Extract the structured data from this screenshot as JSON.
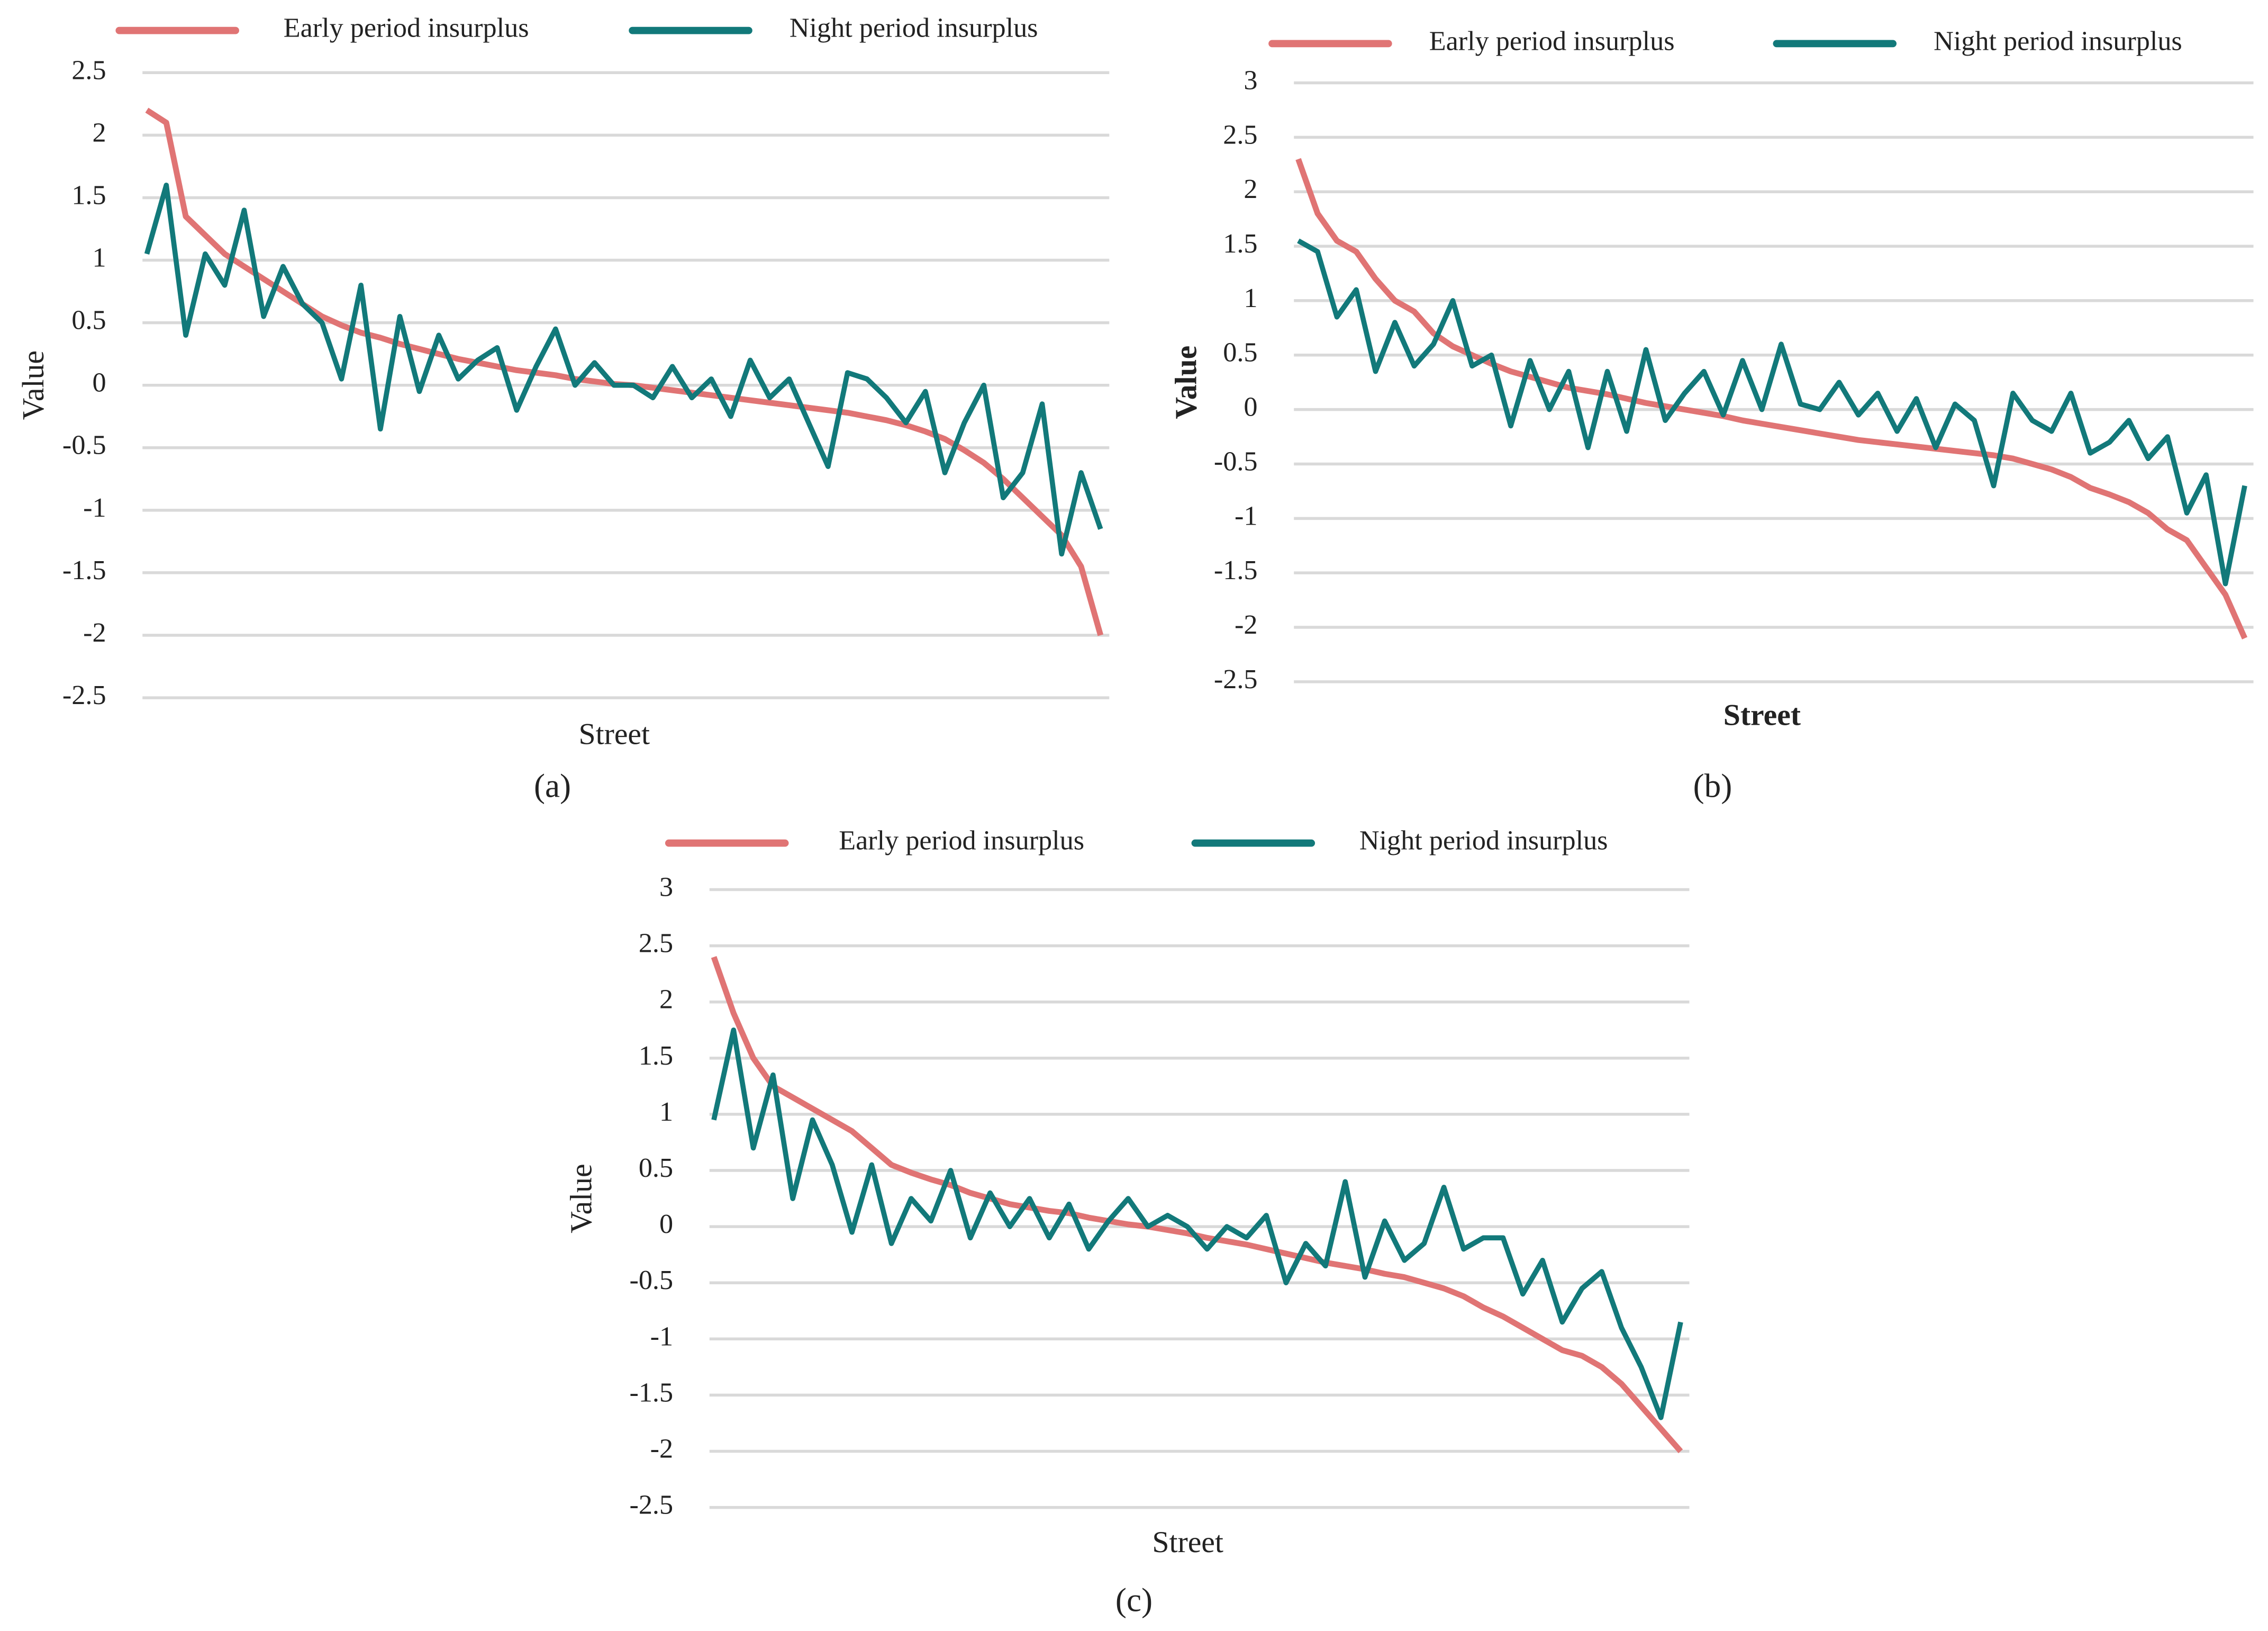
{
  "chart_data": [
    {
      "type": "line",
      "caption": "(a)",
      "x_label": "Street",
      "y_label": "Value",
      "grid": true,
      "legend": "top",
      "ylim": [
        -2.5,
        2.5
      ],
      "yticks": [
        -2.5,
        -2,
        -1.5,
        -1,
        -0.5,
        0,
        0.5,
        1,
        1.5,
        2,
        2.5
      ],
      "categories": [
        null,
        null,
        null,
        null,
        null,
        null,
        null,
        null,
        null,
        null,
        null,
        null,
        null,
        null,
        null,
        null,
        null,
        null,
        null,
        null,
        null,
        null,
        null,
        null,
        null,
        null,
        null,
        null,
        null,
        null,
        null,
        null,
        null,
        null,
        null,
        null,
        null,
        null,
        null,
        null,
        null,
        null,
        null,
        null,
        null,
        null,
        null,
        null,
        null,
        null
      ],
      "series": [
        {
          "name": "Early period insurplus",
          "color": "#e07474",
          "values": [
            2.2,
            2.1,
            1.35,
            1.2,
            1.05,
            0.95,
            0.85,
            0.75,
            0.65,
            0.55,
            0.48,
            0.42,
            0.38,
            0.33,
            0.29,
            0.25,
            0.21,
            0.18,
            0.15,
            0.12,
            0.1,
            0.08,
            0.05,
            0.03,
            0.01,
            0,
            -0.02,
            -0.04,
            -0.06,
            -0.08,
            -0.1,
            -0.12,
            -0.14,
            -0.16,
            -0.18,
            -0.2,
            -0.22,
            -0.25,
            -0.28,
            -0.32,
            -0.37,
            -0.43,
            -0.52,
            -0.62,
            -0.75,
            -0.9,
            -1.05,
            -1.2,
            -1.45,
            -2.0
          ]
        },
        {
          "name": "Night period insurplus",
          "color": "#12797a",
          "values": [
            1.05,
            1.6,
            0.4,
            1.05,
            0.8,
            1.4,
            0.55,
            0.95,
            0.65,
            0.5,
            0.05,
            0.8,
            -0.35,
            0.55,
            -0.05,
            0.4,
            0.05,
            0.2,
            0.3,
            -0.2,
            0.15,
            0.45,
            0.0,
            0.18,
            0.0,
            0.0,
            -0.1,
            0.15,
            -0.1,
            0.05,
            -0.25,
            0.2,
            -0.1,
            0.05,
            -0.3,
            -0.65,
            0.1,
            0.05,
            -0.1,
            -0.3,
            -0.05,
            -0.7,
            -0.3,
            0.0,
            -0.9,
            -0.7,
            -0.15,
            -1.35,
            -0.7,
            -1.15
          ]
        }
      ]
    },
    {
      "type": "line",
      "caption": "(b)",
      "x_label": "Street",
      "y_label": "Value",
      "grid": true,
      "legend": "top",
      "ylim": [
        -2.5,
        3
      ],
      "yticks": [
        -2.5,
        -2,
        -1.5,
        -1,
        -0.5,
        0,
        0.5,
        1,
        1.5,
        2,
        2.5,
        3
      ],
      "categories": [
        null,
        null,
        null,
        null,
        null,
        null,
        null,
        null,
        null,
        null,
        null,
        null,
        null,
        null,
        null,
        null,
        null,
        null,
        null,
        null,
        null,
        null,
        null,
        null,
        null,
        null,
        null,
        null,
        null,
        null,
        null,
        null,
        null,
        null,
        null,
        null,
        null,
        null,
        null,
        null,
        null,
        null,
        null,
        null,
        null,
        null,
        null,
        null,
        null,
        null
      ],
      "series": [
        {
          "name": "Early period insurplus",
          "color": "#e07474",
          "values": [
            2.3,
            1.8,
            1.55,
            1.45,
            1.2,
            1.0,
            0.9,
            0.7,
            0.58,
            0.5,
            0.42,
            0.35,
            0.3,
            0.25,
            0.2,
            0.17,
            0.14,
            0.1,
            0.06,
            0.03,
            0,
            -0.03,
            -0.06,
            -0.1,
            -0.13,
            -0.16,
            -0.19,
            -0.22,
            -0.25,
            -0.28,
            -0.3,
            -0.32,
            -0.34,
            -0.36,
            -0.38,
            -0.4,
            -0.42,
            -0.45,
            -0.5,
            -0.55,
            -0.62,
            -0.72,
            -0.78,
            -0.85,
            -0.95,
            -1.1,
            -1.2,
            -1.45,
            -1.7,
            -2.1
          ]
        },
        {
          "name": "Night period insurplus",
          "color": "#12797a",
          "values": [
            1.55,
            1.45,
            0.85,
            1.1,
            0.35,
            0.8,
            0.4,
            0.6,
            1.0,
            0.4,
            0.5,
            -0.15,
            0.45,
            0.0,
            0.35,
            -0.35,
            0.35,
            -0.2,
            0.55,
            -0.1,
            0.15,
            0.35,
            -0.05,
            0.45,
            0.0,
            0.6,
            0.05,
            0.0,
            0.25,
            -0.05,
            0.15,
            -0.2,
            0.1,
            -0.35,
            0.05,
            -0.1,
            -0.7,
            0.15,
            -0.1,
            -0.2,
            0.15,
            -0.4,
            -0.3,
            -0.1,
            -0.45,
            -0.25,
            -0.95,
            -0.6,
            -1.6,
            -0.7
          ]
        }
      ]
    },
    {
      "type": "line",
      "caption": "(c)",
      "x_label": "Street",
      "y_label": "Value",
      "grid": true,
      "legend": "top",
      "ylim": [
        -2.5,
        3
      ],
      "yticks": [
        -2.5,
        -2,
        -1.5,
        -1,
        -0.5,
        0,
        0.5,
        1,
        1.5,
        2,
        2.5,
        3
      ],
      "categories": [
        null,
        null,
        null,
        null,
        null,
        null,
        null,
        null,
        null,
        null,
        null,
        null,
        null,
        null,
        null,
        null,
        null,
        null,
        null,
        null,
        null,
        null,
        null,
        null,
        null,
        null,
        null,
        null,
        null,
        null,
        null,
        null,
        null,
        null,
        null,
        null,
        null,
        null,
        null,
        null,
        null,
        null,
        null,
        null,
        null,
        null,
        null,
        null,
        null,
        null
      ],
      "series": [
        {
          "name": "Early period insurplus",
          "color": "#e07474",
          "values": [
            2.4,
            1.9,
            1.5,
            1.25,
            1.15,
            1.05,
            0.95,
            0.85,
            0.7,
            0.55,
            0.48,
            0.42,
            0.37,
            0.3,
            0.25,
            0.2,
            0.17,
            0.14,
            0.12,
            0.08,
            0.05,
            0.02,
            0,
            -0.03,
            -0.06,
            -0.1,
            -0.13,
            -0.16,
            -0.2,
            -0.24,
            -0.28,
            -0.32,
            -0.35,
            -0.38,
            -0.42,
            -0.45,
            -0.5,
            -0.55,
            -0.62,
            -0.72,
            -0.8,
            -0.9,
            -1.0,
            -1.1,
            -1.15,
            -1.25,
            -1.4,
            -1.6,
            -1.8,
            -2.0
          ]
        },
        {
          "name": "Night period insurplus",
          "color": "#12797a",
          "values": [
            0.95,
            1.75,
            0.7,
            1.35,
            0.25,
            0.95,
            0.55,
            -0.05,
            0.55,
            -0.15,
            0.25,
            0.05,
            0.5,
            -0.1,
            0.3,
            0.0,
            0.25,
            -0.1,
            0.2,
            -0.2,
            0.05,
            0.25,
            0.0,
            0.1,
            0.0,
            -0.2,
            0.0,
            -0.1,
            0.1,
            -0.5,
            -0.15,
            -0.35,
            0.4,
            -0.45,
            0.05,
            -0.3,
            -0.15,
            0.35,
            -0.2,
            -0.1,
            -0.1,
            -0.6,
            -0.3,
            -0.85,
            -0.55,
            -0.4,
            -0.9,
            -1.25,
            -1.7,
            -0.85
          ]
        }
      ]
    }
  ]
}
